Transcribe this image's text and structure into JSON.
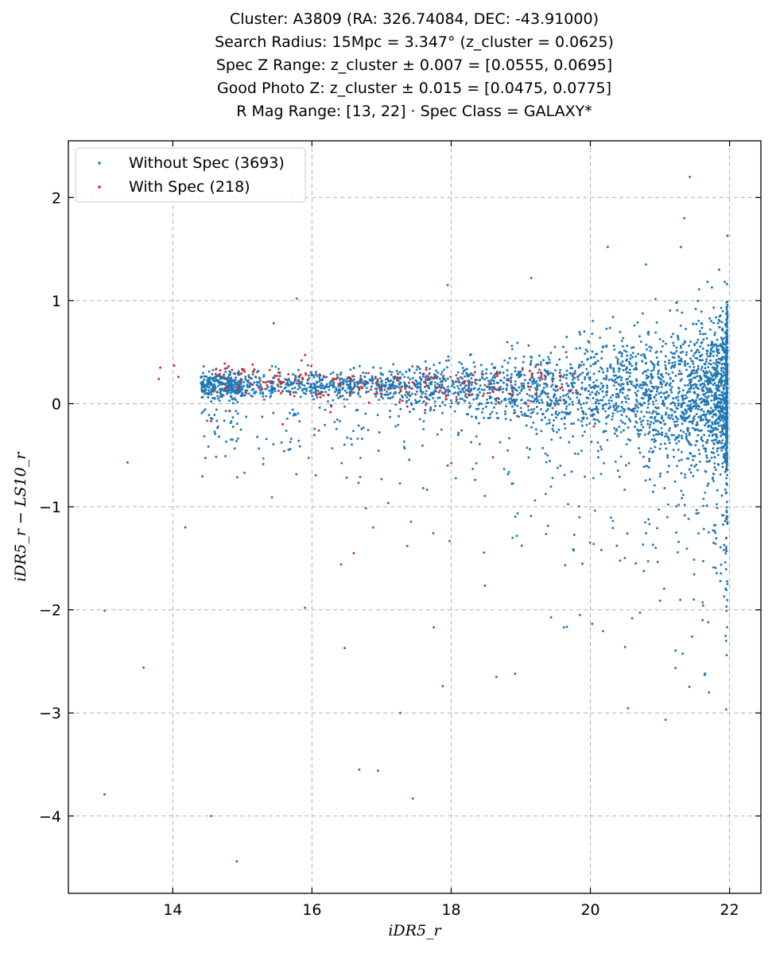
{
  "title_lines": [
    "Cluster: A3809 (RA: 326.74084, DEC: -43.91000)",
    "Search Radius: 15Mpc = 3.347° (z_cluster = 0.0625)",
    "Spec Z Range: z_cluster ± 0.007 = [0.0555, 0.0695]",
    "Good Photo Z: z_cluster ± 0.015 = [0.0475, 0.0775]",
    "R Mag Range: [13, 22] · Spec Class = GALAXY*"
  ],
  "chart_data": {
    "type": "scatter",
    "xlabel": "iDR5_r",
    "ylabel": "iDR5_r − LS10_r",
    "xlim": [
      12.5,
      22.45
    ],
    "ylim": [
      -4.75,
      2.55
    ],
    "x_ticks": [
      14,
      16,
      18,
      20,
      22
    ],
    "y_ticks": [
      -4,
      -3,
      -2,
      -1,
      0,
      1,
      2
    ],
    "grid": true,
    "legend_position": "upper-left",
    "series": [
      {
        "name": "Without Spec (3693)",
        "color": "#1f77b4",
        "points_sampled": [
          [
            13.02,
            -2.01
          ],
          [
            13.58,
            -2.56
          ],
          [
            14.18,
            -1.2
          ],
          [
            14.55,
            -4.0
          ],
          [
            14.92,
            -4.44
          ],
          [
            15.03,
            -0.67
          ],
          [
            15.9,
            -1.98
          ],
          [
            16.47,
            -2.37
          ],
          [
            16.42,
            -1.56
          ],
          [
            16.68,
            -3.55
          ],
          [
            16.95,
            -3.56
          ],
          [
            17.27,
            -3.0
          ],
          [
            17.45,
            -3.83
          ],
          [
            17.37,
            -1.38
          ],
          [
            17.75,
            -2.17
          ],
          [
            17.88,
            -2.74
          ],
          [
            18.65,
            -2.65
          ],
          [
            18.92,
            -2.62
          ],
          [
            19.62,
            -2.17
          ],
          [
            19.85,
            -2.05
          ],
          [
            15.78,
            1.02
          ],
          [
            15.45,
            0.78
          ],
          [
            17.95,
            1.15
          ],
          [
            19.15,
            1.22
          ],
          [
            20.25,
            1.52
          ],
          [
            21.3,
            1.52
          ],
          [
            21.35,
            1.8
          ],
          [
            21.43,
            2.2
          ],
          [
            20.8,
            1.35
          ],
          [
            21.85,
            1.3
          ]
        ]
      },
      {
        "name": "With Spec (218)",
        "color": "#d62728",
        "points_sampled": [
          [
            13.02,
            -3.79
          ],
          [
            13.35,
            -0.57
          ],
          [
            13.8,
            0.24
          ],
          [
            13.82,
            0.35
          ],
          [
            14.02,
            0.37
          ],
          [
            14.08,
            0.26
          ],
          [
            14.55,
            -0.17
          ],
          [
            14.75,
            0.25
          ],
          [
            14.82,
            -0.07
          ],
          [
            15.58,
            -0.2
          ],
          [
            15.6,
            -0.46
          ],
          [
            16.6,
            -1.45
          ],
          [
            17.95,
            -0.6
          ],
          [
            18.6,
            -0.52
          ],
          [
            18.95,
            -0.12
          ],
          [
            19.25,
            0.38
          ],
          [
            19.65,
            0.5
          ],
          [
            20.05,
            -0.22
          ],
          [
            16.1,
            -0.26
          ],
          [
            15.85,
            0.42
          ]
        ]
      }
    ]
  }
}
